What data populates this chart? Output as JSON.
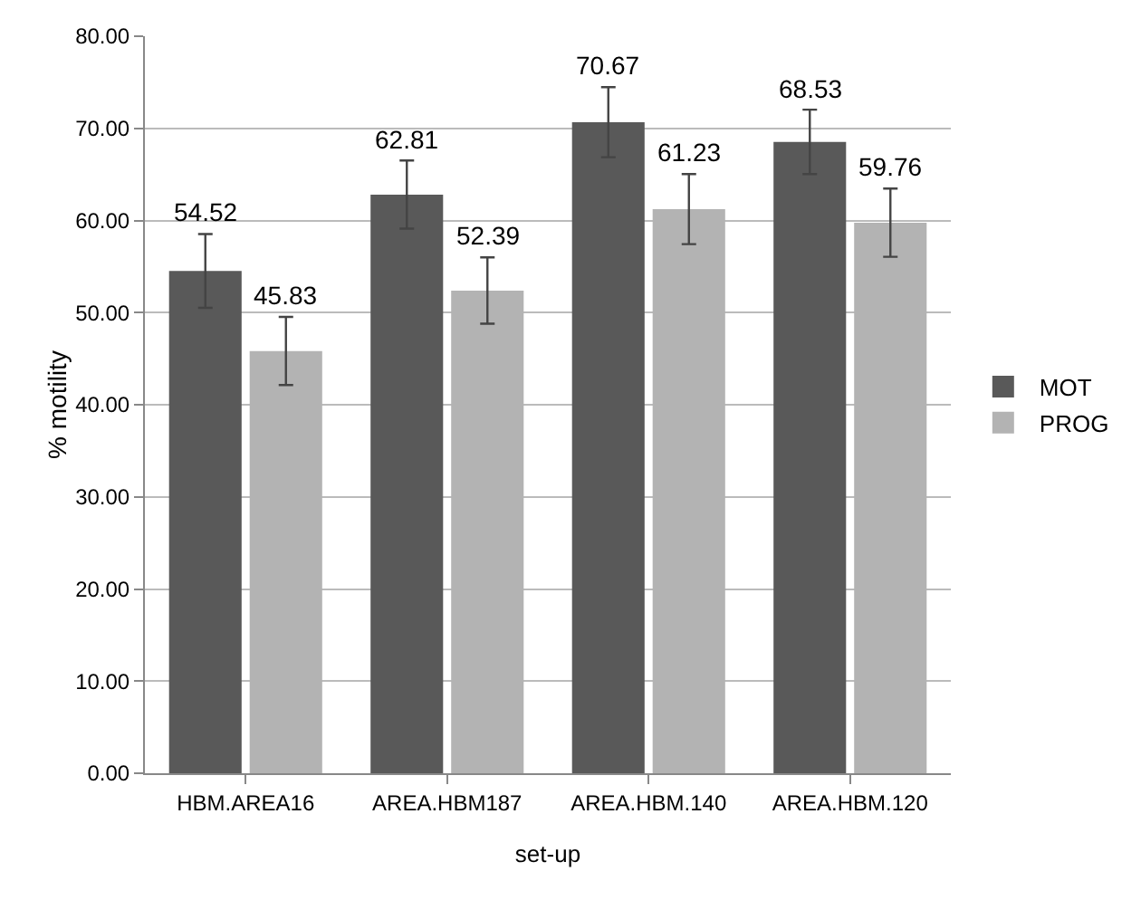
{
  "chart_data": {
    "type": "bar",
    "xlabel": "set-up",
    "ylabel": "% motility",
    "categories": [
      "HBM.AREA16",
      "AREA.HBM187",
      "AREA.HBM.140",
      "AREA.HBM.120"
    ],
    "series": [
      {
        "name": "MOT",
        "color": "#595959",
        "values": [
          54.52,
          62.81,
          70.67,
          68.53
        ],
        "errors": [
          4,
          3.7,
          3.8,
          3.5
        ]
      },
      {
        "name": "PROG",
        "color": "#b3b3b3",
        "values": [
          45.83,
          52.39,
          61.23,
          59.76
        ],
        "errors": [
          3.7,
          3.6,
          3.8,
          3.7
        ]
      }
    ],
    "ylim": [
      0,
      80
    ],
    "yticks": [
      {
        "value": 0,
        "label": "0.00"
      },
      {
        "value": 10,
        "label": "10.00"
      },
      {
        "value": 20,
        "label": "20.00"
      },
      {
        "value": 30,
        "label": "30.00"
      },
      {
        "value": 40,
        "label": "40.00"
      },
      {
        "value": 50,
        "label": "50.00"
      },
      {
        "value": 60,
        "label": "60.00"
      },
      {
        "value": 70,
        "label": "70.00"
      },
      {
        "value": 80,
        "label": "80.00"
      }
    ],
    "grid": "y",
    "legend": "right",
    "data_labels": true
  }
}
